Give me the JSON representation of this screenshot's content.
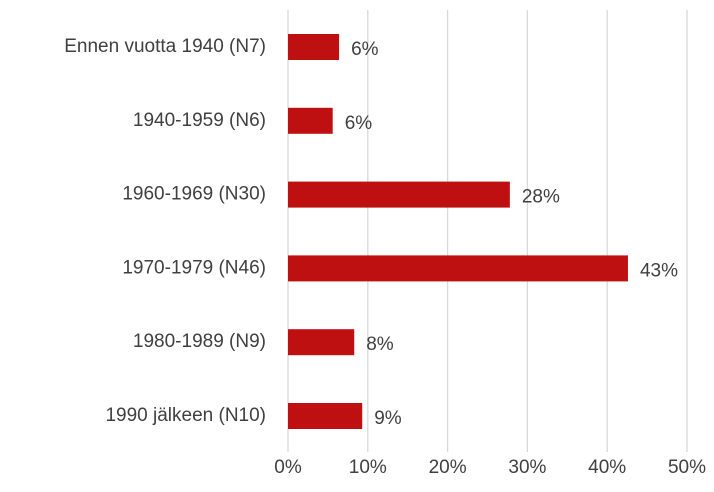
{
  "chart_data": {
    "type": "barh",
    "categories": [
      "Ennen vuotta 1940 (N7)",
      "1940-1959 (N6)",
      "1960-1969 (N30)",
      "1970-1979 (N46)",
      "1980-1989 (N9)",
      "1990 jälkeen (N10)"
    ],
    "values": [
      6.4,
      5.6,
      27.8,
      42.6,
      8.3,
      9.3
    ],
    "value_labels": [
      "6%",
      "6%",
      "28%",
      "43%",
      "8%",
      "9%"
    ],
    "color": "#be1010",
    "xlim": [
      0,
      50
    ],
    "xticks": [
      {
        "value": 0,
        "label": "0%"
      },
      {
        "value": 10,
        "label": "10%"
      },
      {
        "value": 20,
        "label": "20%"
      },
      {
        "value": 30,
        "label": "30%"
      },
      {
        "value": 40,
        "label": "40%"
      },
      {
        "value": 50,
        "label": "50%"
      }
    ],
    "grid": true
  }
}
